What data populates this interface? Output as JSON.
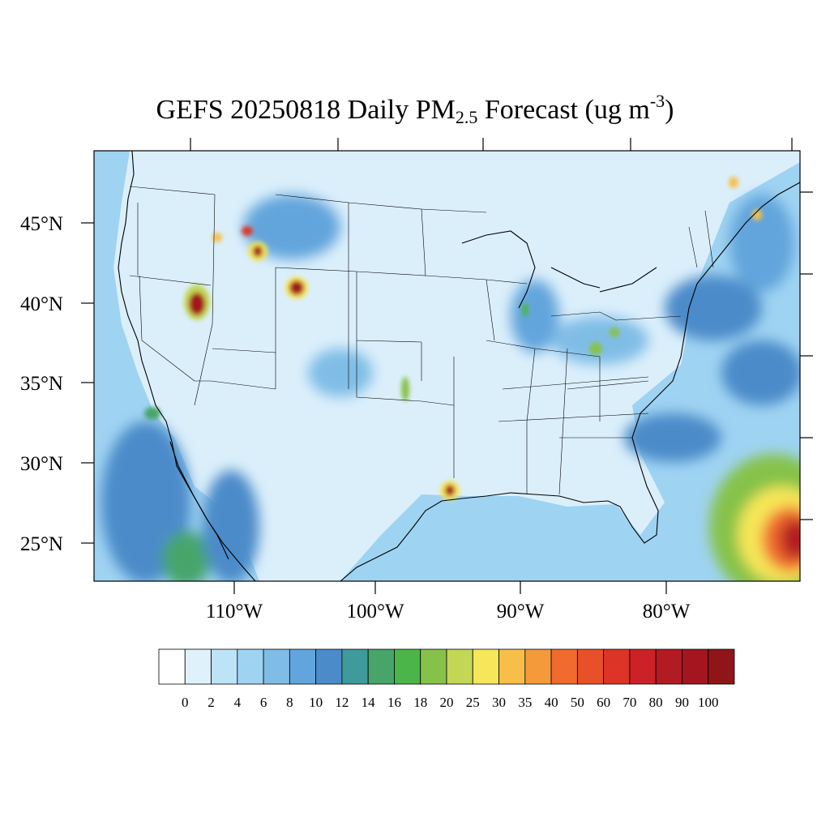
{
  "title": {
    "main": "GEFS 20250818 Daily PM",
    "sub": "2.5",
    "mid": " Forecast (ug m",
    "sup": "-3",
    "end": ")"
  },
  "map": {
    "lat_labels": [
      "45°N",
      "40°N",
      "35°N",
      "30°N",
      "25°N"
    ],
    "lon_labels": [
      "110°W",
      "100°W",
      "90°W",
      "80°W"
    ],
    "background_color": "#dbeffb",
    "ocean_color": "#9fd3f2"
  },
  "colorbar": {
    "levels": [
      "0",
      "2",
      "4",
      "6",
      "8",
      "10",
      "12",
      "14",
      "16",
      "18",
      "20",
      "25",
      "30",
      "35",
      "40",
      "50",
      "60",
      "70",
      "80",
      "90",
      "100"
    ],
    "colors": [
      "#ffffff",
      "#dff1fb",
      "#bde3f7",
      "#9fd3f2",
      "#80bde6",
      "#62a5dc",
      "#4b8bc9",
      "#3f9a9c",
      "#47a56a",
      "#4bb549",
      "#86c24a",
      "#c3d655",
      "#f6e659",
      "#f7bf4a",
      "#f59a3a",
      "#f06b2d",
      "#e8502a",
      "#dc3426",
      "#cc2127",
      "#b31b22",
      "#a3161f",
      "#8f1519"
    ]
  }
}
